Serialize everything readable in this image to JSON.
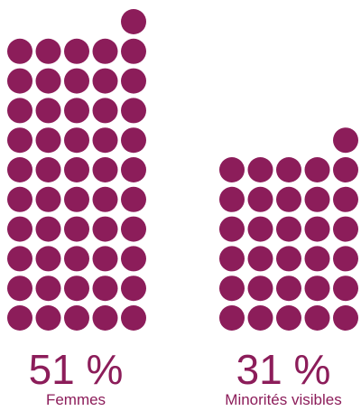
{
  "chart_data": {
    "type": "bar",
    "chart_style": "waffle-dot-columns",
    "units_per_dot": 1,
    "dots_per_row": 5,
    "categories": [
      "Femmes",
      "Minorités visibles"
    ],
    "values": [
      51,
      31
    ],
    "value_labels": [
      "51 %",
      "31 %"
    ],
    "title": "",
    "xlabel": "",
    "ylabel": ""
  },
  "colors": {
    "dot": "#8c1d5a",
    "text": "#8c1d5a"
  }
}
